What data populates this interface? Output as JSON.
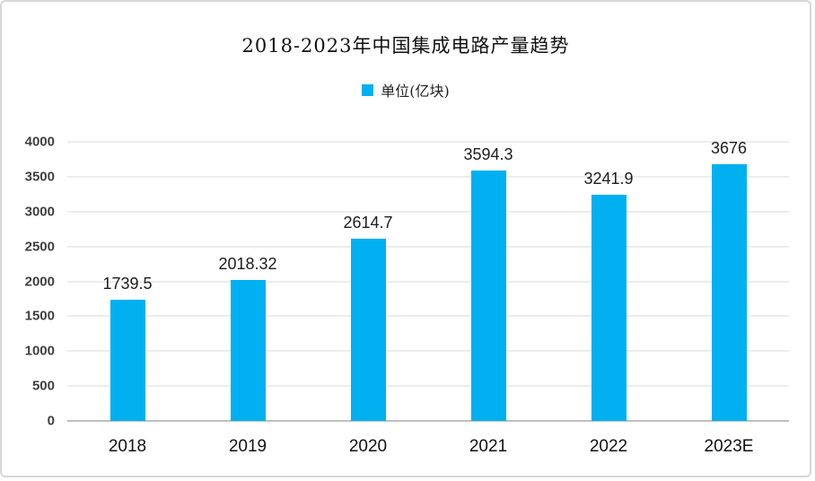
{
  "chart_data": {
    "type": "bar",
    "title": "2018-2023年中国集成电路产量趋势",
    "legend": "单位(亿块)",
    "legend_position": "top",
    "categories": [
      "2018",
      "2019",
      "2020",
      "2021",
      "2022",
      "2023E"
    ],
    "values": [
      1739.5,
      2018.32,
      2614.7,
      3594.3,
      3241.9,
      3676
    ],
    "value_labels": [
      "1739.5",
      "2018.32",
      "2614.7",
      "3594.3",
      "3241.9",
      "3676"
    ],
    "ylim": [
      0,
      4000
    ],
    "yticks": [
      0,
      500,
      1000,
      1500,
      2000,
      2500,
      3000,
      3500,
      4000
    ],
    "grid": true,
    "colors": {
      "bar": "#00B0F0",
      "gridline": "#d9d9d9",
      "zero_line": "#bfbfbf",
      "ytick_text": "#404040",
      "frame_border": "#d7d7d7"
    }
  }
}
